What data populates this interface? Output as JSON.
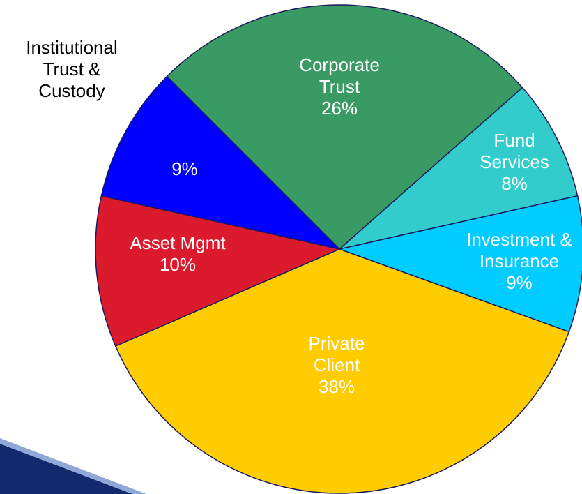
{
  "chart_data": {
    "type": "pie",
    "categories": [
      "Corporate Trust",
      "Fund Services",
      "Investment & Insurance",
      "Private Client",
      "Asset Mgmt",
      "Institutional Trust & Custody"
    ],
    "values": [
      26,
      8,
      9,
      38,
      10,
      9
    ],
    "value_labels": [
      "26%",
      "8%",
      "9%",
      "38%",
      "10%",
      "9%"
    ],
    "colors": [
      "#3a9a64",
      "#33cccc",
      "#00ccff",
      "#ffcc00",
      "#dc1a2e",
      "#0000ff"
    ]
  }
}
